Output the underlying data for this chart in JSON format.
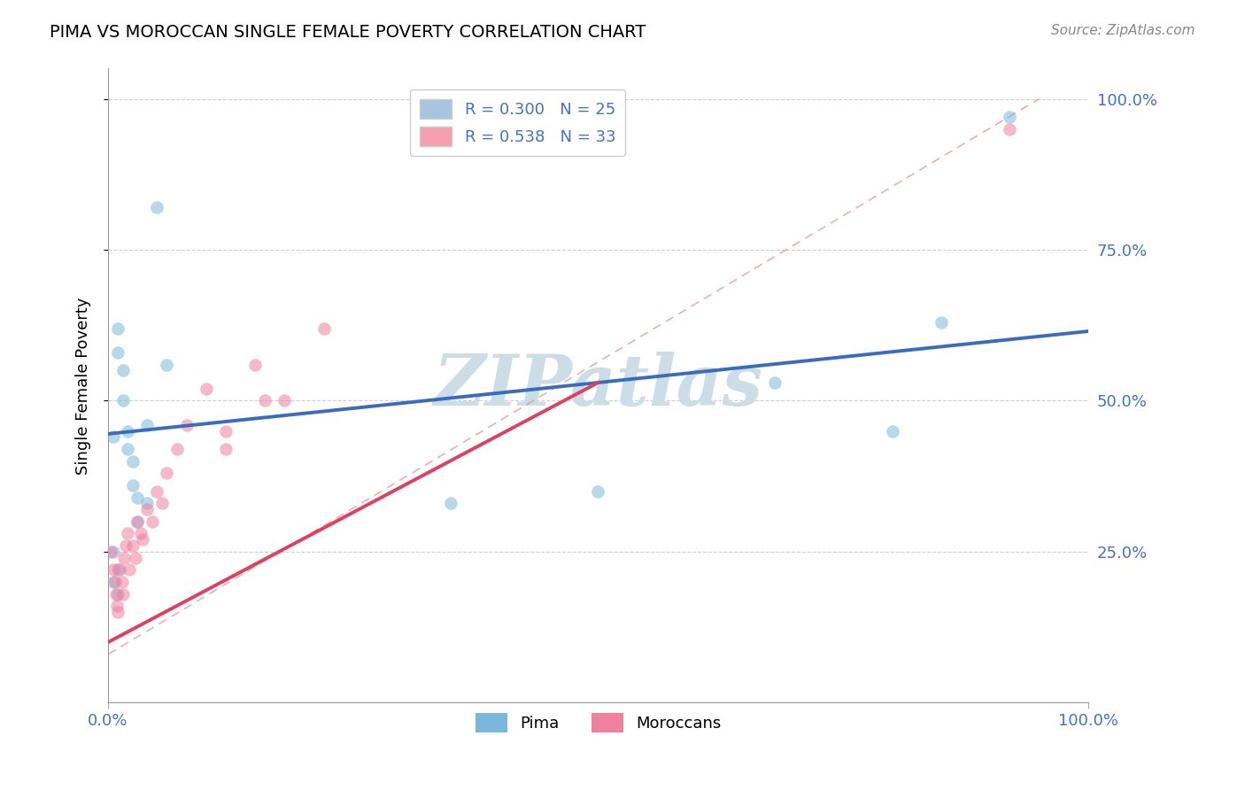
{
  "title": "PIMA VS MOROCCAN SINGLE FEMALE POVERTY CORRELATION CHART",
  "source_text": "Source: ZipAtlas.com",
  "ylabel": "Single Female Poverty",
  "legend_pima_label": "R = 0.300   N = 25",
  "legend_moroccan_label": "R = 0.538   N = 33",
  "legend_pima_color": "#a8c4e0",
  "legend_moroccan_color": "#f4a0b0",
  "pima_color": "#7ab8d9",
  "moroccan_color": "#f080a0",
  "pima_line_color": "#3a6bbf",
  "moroccan_line_color": "#e04060",
  "diag_line_color": "#e09090",
  "watermark": "ZIPatlas",
  "watermark_color": "#ccdde8",
  "pima_x": [
    0.005,
    0.01,
    0.01,
    0.015,
    0.015,
    0.02,
    0.02,
    0.025,
    0.025,
    0.03,
    0.03,
    0.04,
    0.04,
    0.05,
    0.06,
    0.005,
    0.01,
    0.005,
    0.01,
    0.35,
    0.5,
    0.68,
    0.8,
    0.85,
    0.92
  ],
  "pima_y": [
    0.44,
    0.62,
    0.58,
    0.55,
    0.5,
    0.45,
    0.42,
    0.4,
    0.36,
    0.34,
    0.3,
    0.46,
    0.33,
    0.82,
    0.56,
    0.25,
    0.22,
    0.2,
    0.18,
    0.33,
    0.35,
    0.53,
    0.45,
    0.63,
    0.97
  ],
  "moroccan_x": [
    0.003,
    0.005,
    0.007,
    0.008,
    0.009,
    0.01,
    0.012,
    0.014,
    0.015,
    0.016,
    0.018,
    0.02,
    0.022,
    0.025,
    0.028,
    0.03,
    0.033,
    0.035,
    0.04,
    0.045,
    0.05,
    0.055,
    0.06,
    0.07,
    0.08,
    0.1,
    0.12,
    0.15,
    0.18,
    0.22,
    0.12,
    0.16,
    0.92
  ],
  "moroccan_y": [
    0.25,
    0.22,
    0.2,
    0.18,
    0.16,
    0.15,
    0.22,
    0.2,
    0.18,
    0.24,
    0.26,
    0.28,
    0.22,
    0.26,
    0.24,
    0.3,
    0.28,
    0.27,
    0.32,
    0.3,
    0.35,
    0.33,
    0.38,
    0.42,
    0.46,
    0.52,
    0.42,
    0.56,
    0.5,
    0.62,
    0.45,
    0.5,
    0.95
  ],
  "xlim": [
    0.0,
    1.0
  ],
  "ylim": [
    0.0,
    1.05
  ],
  "pima_line_x0": 0.0,
  "pima_line_y0": 0.445,
  "pima_line_x1": 1.0,
  "pima_line_y1": 0.615,
  "moroccan_line_x0": 0.0,
  "moroccan_line_y0": 0.1,
  "moroccan_line_x1": 0.5,
  "moroccan_line_y1": 0.53,
  "background_color": "#ffffff",
  "grid_color": "#bbbbbb"
}
